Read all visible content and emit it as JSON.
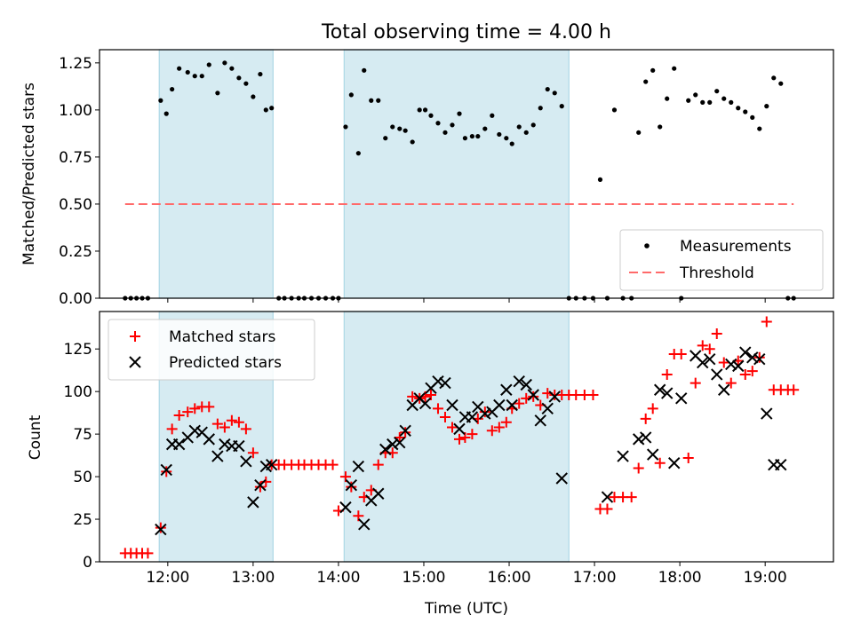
{
  "figure": {
    "title": "Total observing time = 4.00 h"
  },
  "colors": {
    "shade": "#add8e6",
    "measure": "#000000",
    "threshold": "#ff6a6a",
    "matched": "#ff0000",
    "predicted": "#000000"
  },
  "chart_data": [
    {
      "type": "scatter",
      "title": "Total observing time = 4.00 h",
      "xlabel": "",
      "ylabel": "Matched/Predicted stars",
      "xlim": [
        "11:12",
        "19:48"
      ],
      "ylim": [
        0,
        1.32
      ],
      "xticks": [
        "12:00",
        "13:00",
        "14:00",
        "15:00",
        "16:00",
        "17:00",
        "18:00",
        "19:00"
      ],
      "yticks": [
        "0.00",
        "0.25",
        "0.50",
        "0.75",
        "1.00",
        "1.25"
      ],
      "shaded_intervals": [
        [
          "11:54",
          "13:14"
        ],
        [
          "14:04",
          "16:42"
        ]
      ],
      "legend": {
        "position": "lower right",
        "entries": [
          "Measurements",
          "Threshold"
        ]
      },
      "threshold": {
        "name": "Threshold",
        "y": 0.5,
        "x_range": [
          "11:30",
          "19:20"
        ]
      },
      "series": [
        {
          "name": "Measurements",
          "x": [
            "11:30",
            "11:34",
            "11:38",
            "11:42",
            "11:46",
            "11:55",
            "11:59",
            "12:03",
            "12:08",
            "12:14",
            "12:19",
            "12:24",
            "12:29",
            "12:35",
            "12:40",
            "12:45",
            "12:50",
            "12:55",
            "13:00",
            "13:05",
            "13:09",
            "13:13",
            "13:18",
            "13:22",
            "13:27",
            "13:32",
            "13:36",
            "13:41",
            "13:46",
            "13:51",
            "13:56",
            "14:00",
            "14:05",
            "14:09",
            "14:14",
            "14:18",
            "14:23",
            "14:28",
            "14:33",
            "14:38",
            "14:43",
            "14:47",
            "14:52",
            "14:57",
            "15:01",
            "15:05",
            "15:10",
            "15:15",
            "15:20",
            "15:25",
            "15:29",
            "15:34",
            "15:38",
            "15:43",
            "15:48",
            "15:53",
            "15:58",
            "16:02",
            "16:07",
            "16:12",
            "16:17",
            "16:22",
            "16:27",
            "16:32",
            "16:37",
            "16:42",
            "16:47",
            "16:53",
            "16:59",
            "17:04",
            "17:09",
            "17:14",
            "17:20",
            "17:26",
            "17:31",
            "17:36",
            "17:41",
            "17:46",
            "17:51",
            "17:56",
            "18:01",
            "18:06",
            "18:11",
            "18:16",
            "18:21",
            "18:26",
            "18:31",
            "18:36",
            "18:41",
            "18:46",
            "18:51",
            "18:56",
            "19:01",
            "19:06",
            "19:11",
            "19:16",
            "19:20"
          ],
          "y": [
            0,
            0,
            0,
            0,
            0,
            1.05,
            0.98,
            1.11,
            1.22,
            1.2,
            1.18,
            1.18,
            1.24,
            1.09,
            1.25,
            1.22,
            1.17,
            1.14,
            1.07,
            1.19,
            1.0,
            1.01,
            0,
            0,
            0,
            0,
            0,
            0,
            0,
            0,
            0,
            0,
            0.91,
            1.08,
            0.77,
            1.21,
            1.05,
            1.05,
            0.85,
            0.91,
            0.9,
            0.89,
            0.83,
            1.0,
            1.0,
            0.97,
            0.93,
            0.88,
            0.92,
            0.98,
            0.85,
            0.86,
            0.86,
            0.9,
            0.97,
            0.87,
            0.85,
            0.82,
            0.91,
            0.88,
            0.92,
            1.01,
            1.11,
            1.09,
            1.02,
            0,
            0,
            0,
            0,
            0.63,
            0,
            1.0,
            0,
            0,
            0.88,
            1.15,
            1.21,
            0.91,
            1.06,
            1.22,
            0,
            1.05,
            1.08,
            1.04,
            1.04,
            1.1,
            1.06,
            1.04,
            1.01,
            0.99,
            0.96,
            0.9,
            1.02,
            1.17,
            1.14,
            0,
            0
          ]
        }
      ]
    },
    {
      "type": "scatter",
      "title": "",
      "xlabel": "Time (UTC)",
      "ylabel": "Count",
      "xlim": [
        "11:12",
        "19:48"
      ],
      "ylim": [
        0,
        147
      ],
      "xticks": [
        "12:00",
        "13:00",
        "14:00",
        "15:00",
        "16:00",
        "17:00",
        "18:00",
        "19:00"
      ],
      "yticks": [
        "0",
        "25",
        "50",
        "75",
        "100",
        "125"
      ],
      "shaded_intervals": [
        [
          "11:54",
          "13:14"
        ],
        [
          "14:04",
          "16:42"
        ]
      ],
      "legend": {
        "position": "upper left",
        "entries": [
          "Matched stars",
          "Predicted stars"
        ]
      },
      "series": [
        {
          "name": "Matched stars",
          "x": [
            "11:30",
            "11:34",
            "11:38",
            "11:42",
            "11:46",
            "11:55",
            "11:59",
            "12:03",
            "12:08",
            "12:14",
            "12:19",
            "12:24",
            "12:29",
            "12:35",
            "12:40",
            "12:45",
            "12:50",
            "12:55",
            "13:00",
            "13:05",
            "13:09",
            "13:13",
            "13:18",
            "13:22",
            "13:27",
            "13:32",
            "13:36",
            "13:41",
            "13:46",
            "13:51",
            "13:56",
            "14:00",
            "14:05",
            "14:09",
            "14:14",
            "14:18",
            "14:23",
            "14:28",
            "14:33",
            "14:38",
            "14:43",
            "14:47",
            "14:52",
            "14:57",
            "15:01",
            "15:05",
            "15:10",
            "15:15",
            "15:20",
            "15:25",
            "15:29",
            "15:34",
            "15:38",
            "15:43",
            "15:48",
            "15:53",
            "15:58",
            "16:02",
            "16:07",
            "16:12",
            "16:17",
            "16:22",
            "16:27",
            "16:32",
            "16:37",
            "16:42",
            "16:47",
            "16:53",
            "16:59",
            "17:04",
            "17:09",
            "17:14",
            "17:20",
            "17:26",
            "17:31",
            "17:36",
            "17:41",
            "17:46",
            "17:51",
            "17:56",
            "18:01",
            "18:06",
            "18:11",
            "18:16",
            "18:21",
            "18:26",
            "18:31",
            "18:36",
            "18:41",
            "18:46",
            "18:51",
            "18:56",
            "19:01",
            "19:06",
            "19:11",
            "19:16",
            "19:20"
          ],
          "y": [
            5,
            5,
            5,
            5,
            5,
            20,
            53,
            78,
            86,
            88,
            90,
            91,
            91,
            81,
            79,
            83,
            82,
            78,
            64,
            44,
            47,
            57,
            57,
            57,
            57,
            57,
            57,
            57,
            57,
            57,
            57,
            30,
            50,
            44,
            27,
            38,
            42,
            57,
            64,
            64,
            73,
            76,
            97,
            96,
            97,
            98,
            90,
            85,
            79,
            72,
            73,
            75,
            84,
            88,
            77,
            79,
            82,
            90,
            93,
            96,
            97,
            92,
            99,
            98,
            98,
            98,
            98,
            98,
            98,
            31,
            31,
            38,
            38,
            38,
            55,
            84,
            90,
            58,
            110,
            122,
            122,
            61,
            105,
            127,
            125,
            134,
            117,
            105,
            118,
            110,
            112,
            120,
            141,
            101,
            101,
            101,
            101
          ]
        },
        {
          "name": "Predicted stars",
          "x": [
            "11:55",
            "11:59",
            "12:03",
            "12:08",
            "12:14",
            "12:19",
            "12:24",
            "12:29",
            "12:35",
            "12:40",
            "12:45",
            "12:50",
            "12:55",
            "13:00",
            "13:05",
            "13:09",
            "13:13",
            "14:05",
            "14:09",
            "14:14",
            "14:18",
            "14:23",
            "14:28",
            "14:33",
            "14:38",
            "14:43",
            "14:47",
            "14:52",
            "14:57",
            "15:01",
            "15:05",
            "15:10",
            "15:15",
            "15:20",
            "15:25",
            "15:29",
            "15:34",
            "15:38",
            "15:43",
            "15:48",
            "15:53",
            "15:58",
            "16:02",
            "16:07",
            "16:12",
            "16:17",
            "16:22",
            "16:27",
            "16:32",
            "16:37",
            "17:09",
            "17:20",
            "17:31",
            "17:36",
            "17:41",
            "17:46",
            "17:51",
            "17:56",
            "18:01",
            "18:11",
            "18:16",
            "18:21",
            "18:26",
            "18:31",
            "18:36",
            "18:41",
            "18:46",
            "18:51",
            "18:56",
            "19:01",
            "19:06",
            "19:11"
          ],
          "y": [
            19,
            54,
            69,
            69,
            73,
            77,
            76,
            72,
            62,
            69,
            68,
            68,
            59,
            35,
            45,
            56,
            57,
            32,
            45,
            56,
            22,
            36,
            40,
            66,
            69,
            70,
            77,
            92,
            96,
            93,
            102,
            106,
            105,
            92,
            78,
            85,
            85,
            91,
            87,
            88,
            92,
            101,
            92,
            106,
            104,
            98,
            83,
            90,
            97,
            49,
            38,
            62,
            72,
            73,
            63,
            101,
            99,
            58,
            96,
            121,
            117,
            119,
            110,
            101,
            116,
            115,
            123,
            120,
            119,
            87,
            57,
            57
          ]
        }
      ]
    }
  ]
}
